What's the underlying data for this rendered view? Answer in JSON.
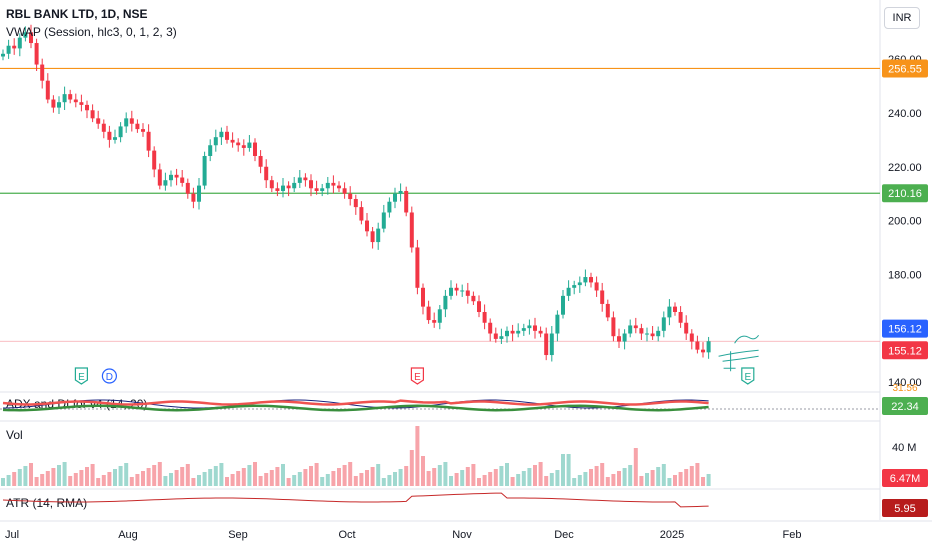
{
  "header": {
    "symbol_line": "RBL BANK LTD, 1D, NSE",
    "indicator_vwap": "VWAP (Session, hlc3, 0, 1, 2, 3)",
    "currency_button": "INR"
  },
  "colors": {
    "up": "#22ab94",
    "down": "#f23645",
    "resistance": "#f7931a",
    "support": "#4caf50",
    "last_price": "#f23645",
    "vwap_tag": "#2962ff"
  },
  "chart_data": {
    "type": "candlestick",
    "price_axis": {
      "ticks": [
        140,
        160,
        180,
        200,
        220,
        240,
        260
      ],
      "tick_labels": [
        "140.00",
        "160.00",
        "180.00",
        "200.00",
        "220.00",
        "240.00",
        "260.00"
      ],
      "ylim": [
        137,
        282
      ]
    },
    "time_axis": {
      "labels": [
        "Jul",
        "Aug",
        "Sep",
        "Oct",
        "Nov",
        "Dec",
        "2025",
        "Feb"
      ]
    },
    "horizontal_lines": [
      {
        "value": 256.55,
        "label": "256.55",
        "color": "#f7931a"
      },
      {
        "value": 210.16,
        "label": "210.16",
        "color": "#4caf50"
      }
    ],
    "price_tags": [
      {
        "value": 156.12,
        "label": "156.12",
        "color": "#2962ff"
      },
      {
        "value": 155.12,
        "label": "155.12",
        "color": "#f23645"
      }
    ],
    "closes": [
      262,
      265,
      264,
      268,
      270,
      266,
      258,
      252,
      245,
      242,
      244,
      247,
      245,
      244,
      243,
      241,
      238,
      236,
      233,
      230,
      231,
      235,
      238,
      236,
      234,
      233,
      226,
      219,
      213,
      215,
      217,
      216,
      214,
      210,
      207,
      213,
      224,
      228,
      231,
      233,
      230,
      229,
      228,
      227,
      229,
      224,
      220,
      215,
      212,
      211,
      213,
      212,
      214,
      216,
      215,
      212,
      211,
      212,
      214,
      213,
      212,
      210,
      208,
      205,
      200,
      196,
      192,
      197,
      203,
      207,
      210,
      211,
      203,
      190,
      175,
      168,
      163,
      162,
      167,
      172,
      175,
      174,
      174,
      172,
      170,
      166,
      162,
      158,
      156,
      157,
      159,
      158,
      159,
      160,
      161,
      159,
      158,
      150,
      158,
      165,
      172,
      175,
      176,
      177,
      179,
      177,
      174,
      169,
      164,
      157,
      155,
      158,
      161,
      160,
      158,
      158,
      157,
      159,
      164,
      168,
      166,
      162,
      158,
      155,
      152,
      151,
      155.12
    ],
    "event_markers": [
      {
        "label": "E",
        "index": 14,
        "color": "#22ab94"
      },
      {
        "label": "D",
        "index": 19,
        "color": "#2962ff"
      },
      {
        "label": "E",
        "index": 74,
        "color": "#f23645"
      },
      {
        "label": "E",
        "index": 133,
        "color": "#22ab94"
      }
    ],
    "adx_panel": {
      "title": "ADX and DI for v4 (14, 20)",
      "value_label": "22.34",
      "hidden_label": "31.56",
      "tag_color": "#4caf50"
    },
    "volume_panel": {
      "title": "Vol",
      "axis_label": "40 M",
      "value_label": "6.47M",
      "tag_color": "#f23645"
    },
    "atr_panel": {
      "title": "ATR (14, RMA)",
      "value_label": "5.95",
      "tag_color": "#b71c1c"
    }
  }
}
